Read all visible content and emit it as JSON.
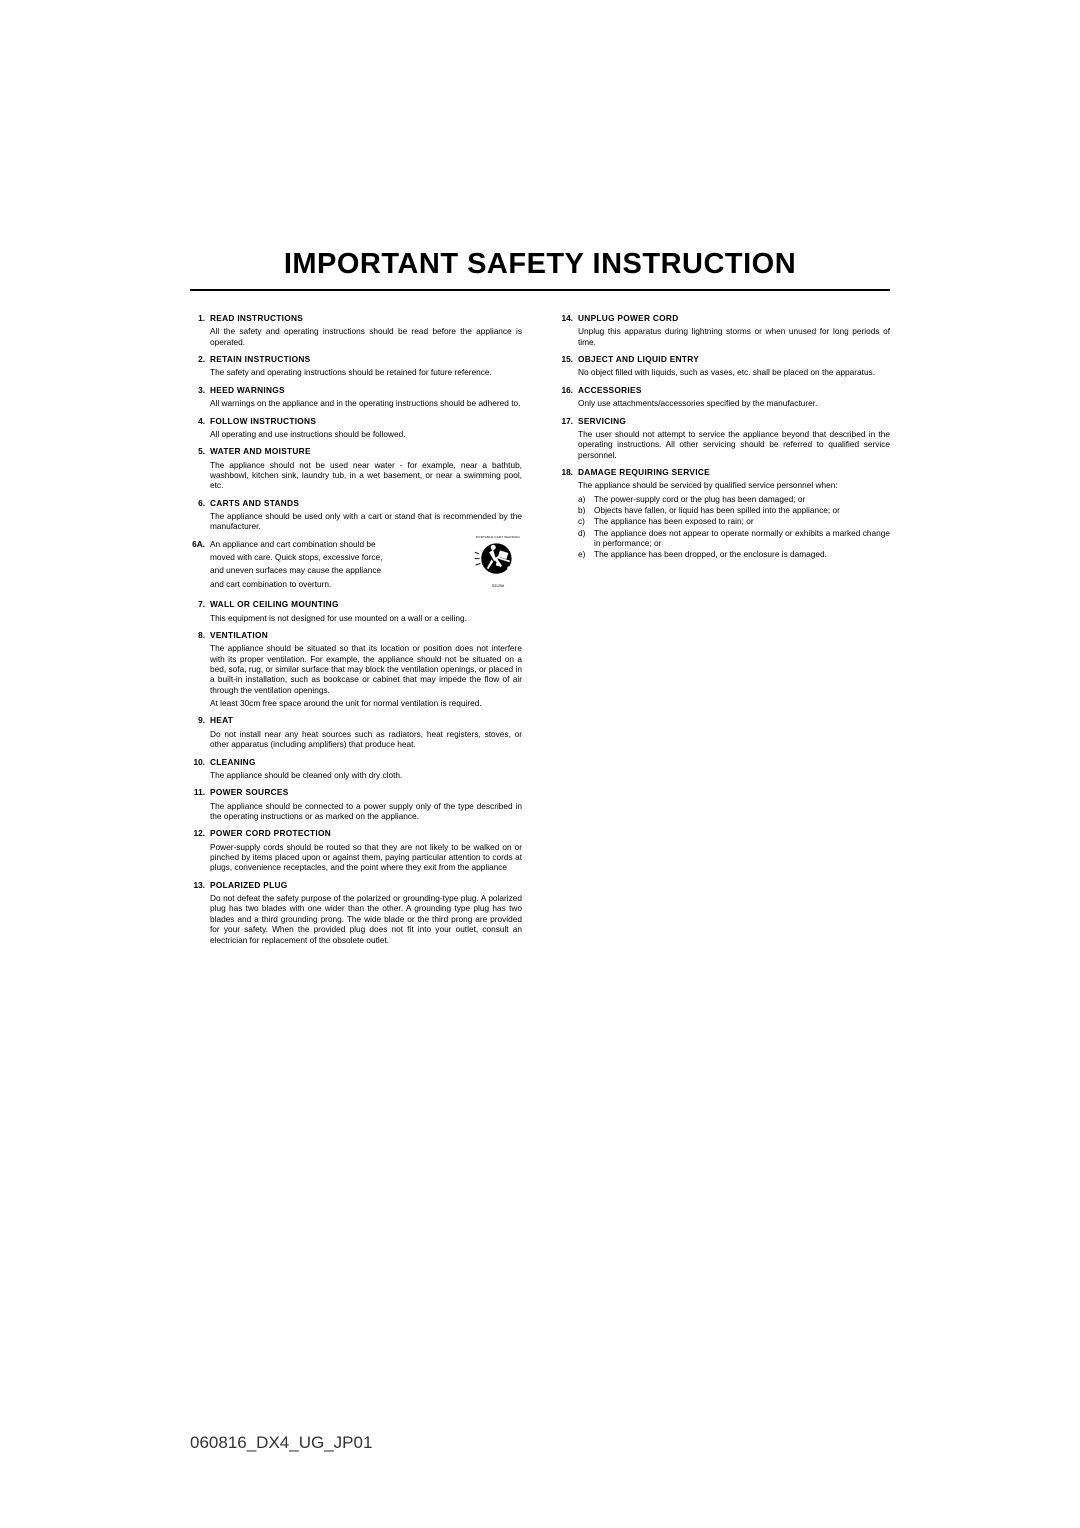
{
  "title": "IMPORTANT SAFETY INSTRUCTION",
  "footer": "060816_DX4_UG_JP01",
  "left": [
    {
      "n": "1.",
      "h": "READ INSTRUCTIONS",
      "p": [
        "All the safety and operating instructions should be read before the appliance is operated."
      ]
    },
    {
      "n": "2.",
      "h": "RETAIN INSTRUCTIONS",
      "p": [
        "The safety and operating instructions should be retained for future reference."
      ]
    },
    {
      "n": "3.",
      "h": "HEED WARNINGS",
      "p": [
        "All warnings on the appliance and in the operating instructions should be adhered to."
      ]
    },
    {
      "n": "4.",
      "h": "FOLLOW INSTRUCTIONS",
      "p": [
        "All operating and use instructions should be followed."
      ]
    },
    {
      "n": "5.",
      "h": "WATER AND MOISTURE",
      "p": [
        "The appliance should not be used near water - for example, near a bathtub, washbowl, kitchen sink, laundry tub, in a wet basement, or near a swimming pool, etc."
      ]
    },
    {
      "n": "6.",
      "h": "CARTS AND STANDS",
      "p": [
        "The appliance should be used only with a cart or stand that is recommended by the manufacturer."
      ]
    },
    {
      "n": "6A.",
      "lines": [
        "An appliance and cart combination should be",
        "moved with care. Quick stops, excessive force,",
        "and uneven surfaces may cause the appliance",
        "and cart combination to overturn."
      ]
    },
    {
      "n": "7.",
      "h": "WALL OR CEILING MOUNTING",
      "p": [
        "This equipment is not designed for use mounted on a wall or a ceiling."
      ]
    },
    {
      "n": "8.",
      "h": "VENTILATION",
      "p": [
        "The appliance should be situated so that its location or position does not interfere with its proper ventilation. For example, the appliance should not be situated on a bed, sofa, rug, or similar surface that may block the ventilation openings, or placed in a built-in installation, such as bookcase or cabinet that may impede the flow of air through the ventilation openings.",
        "At least 30cm free space around the unit for normal ventilation is required."
      ]
    },
    {
      "n": "9.",
      "h": "HEAT",
      "p": [
        "Do not install near any heat sources such as radiators, heat registers, stoves, or other apparatus (including amplifiers) that produce heat."
      ]
    },
    {
      "n": "10.",
      "h": "CLEANING",
      "p": [
        "The appliance should be cleaned only with dry cloth."
      ]
    },
    {
      "n": "11.",
      "h": "POWER SOURCES",
      "p": [
        "The appliance should be connected to a power supply only of the type described in the operating instructions or as marked on the appliance."
      ]
    },
    {
      "n": "12.",
      "h": "POWER CORD PROTECTION",
      "p": [
        "Power-supply cords should be routed so that they are not likely to be walked on or pinched by items placed upon or against them, paying particular attention to cords at plugs, convenience receptacles, and the point where they exit from the appliance"
      ]
    },
    {
      "n": "13.",
      "h": "POLARIZED PLUG",
      "p": [
        "Do not defeat the safety purpose of the polarized or grounding-type plug. A polarized plug has two blades with one wider than the other. A grounding type plug has two blades and a third grounding prong. The wide blade or the third prong are provided for your safety. When the provided plug does not fit into your outlet, consult an electrician for replacement of the obsolete outlet."
      ]
    }
  ],
  "right": [
    {
      "n": "14.",
      "h": "UNPLUG POWER CORD",
      "p": [
        "Unplug this apparatus during lightning storms or when unused for long periods of time."
      ]
    },
    {
      "n": "15.",
      "h": "OBJECT AND LIQUID ENTRY",
      "p": [
        "No object filled with liquids, such as vases, etc. shall be placed on the apparatus."
      ]
    },
    {
      "n": "16.",
      "h": "ACCESSORIES",
      "p": [
        "Only use attachments/accessories specified by the manufacturer."
      ]
    },
    {
      "n": "17.",
      "h": "SERVICING",
      "p": [
        "The user should not attempt to service the appliance beyond that described in the operating instructions. All other servicing should be referred to qualified service personnel."
      ]
    },
    {
      "n": "18.",
      "h": "DAMAGE REQUIRING SERVICE",
      "p": [
        "The appliance should be serviced by qualified service personnel when:"
      ],
      "sub": [
        {
          "l": "a)",
          "t": "The power-supply cord or the plug has been damaged; or"
        },
        {
          "l": "b)",
          "t": "Objects have fallen, or liquid has been spilled into the appliance; or"
        },
        {
          "l": "c)",
          "t": "The appliance has been exposed to rain; or"
        },
        {
          "l": "d)",
          "t": "The appliance does not appear to operate normally or exhibits a marked change in performance; or"
        },
        {
          "l": "e)",
          "t": "The appliance has been dropped, or the enclosure is damaged."
        }
      ]
    }
  ],
  "icon_top_label": "PORTABLE CART WARNING",
  "icon_bottom_label": "S3125A"
}
